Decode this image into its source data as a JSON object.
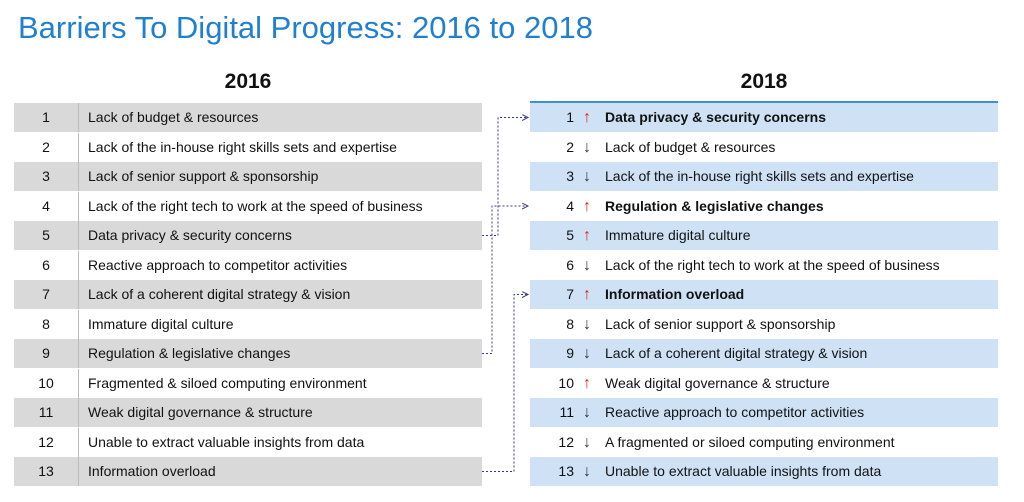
{
  "title": "Barriers To Digital Progress: 2016 to 2018",
  "colors": {
    "title": "#1f7fd0",
    "row_shade_2016": "#d9d9d9",
    "row_shade_2018": "#cfe2f5",
    "arrow_up": "#e02020",
    "arrow_down": "#333333",
    "connector": "#3a3a8c"
  },
  "table_2016": {
    "heading": "2016",
    "rows": [
      {
        "rank": "1",
        "text": "Lack of budget & resources"
      },
      {
        "rank": "2",
        "text": "Lack of the in-house right skills sets and expertise"
      },
      {
        "rank": "3",
        "text": "Lack of senior support & sponsorship"
      },
      {
        "rank": "4",
        "text": "Lack of the right tech to work at the speed of business"
      },
      {
        "rank": "5",
        "text": "Data privacy & security concerns"
      },
      {
        "rank": "6",
        "text": "Reactive approach to competitor activities"
      },
      {
        "rank": "7",
        "text": "Lack of a coherent digital strategy & vision"
      },
      {
        "rank": "8",
        "text": "Immature digital culture"
      },
      {
        "rank": "9",
        "text": "Regulation & legislative changes"
      },
      {
        "rank": "10",
        "text": "Fragmented & siloed computing environment"
      },
      {
        "rank": "11",
        "text": "Weak digital governance & structure"
      },
      {
        "rank": "12",
        "text": "Unable to extract valuable insights from data"
      },
      {
        "rank": "13",
        "text": "Information overload"
      }
    ]
  },
  "table_2018": {
    "heading": "2018",
    "rows": [
      {
        "rank": "1",
        "arrow": "↑",
        "direction": "up",
        "bold": true,
        "text": "Data privacy & security concerns"
      },
      {
        "rank": "2",
        "arrow": "↓",
        "direction": "down",
        "bold": false,
        "text": "Lack of budget & resources"
      },
      {
        "rank": "3",
        "arrow": "↓",
        "direction": "down",
        "bold": false,
        "text": "Lack of the in-house right skills sets and expertise"
      },
      {
        "rank": "4",
        "arrow": "↑",
        "direction": "up",
        "bold": true,
        "text": "Regulation & legislative changes"
      },
      {
        "rank": "5",
        "arrow": "↑",
        "direction": "up",
        "bold": false,
        "text": "Immature digital culture"
      },
      {
        "rank": "6",
        "arrow": "↓",
        "direction": "down",
        "bold": false,
        "text": "Lack of the right tech to work at the speed of business"
      },
      {
        "rank": "7",
        "arrow": "↑",
        "direction": "up",
        "bold": true,
        "text": "Information overload"
      },
      {
        "rank": "8",
        "arrow": "↓",
        "direction": "down",
        "bold": false,
        "text": "Lack of senior support & sponsorship"
      },
      {
        "rank": "9",
        "arrow": "↓",
        "direction": "down",
        "bold": false,
        "text": "Lack of a coherent digital strategy & vision"
      },
      {
        "rank": "10",
        "arrow": "↑",
        "direction": "up",
        "bold": false,
        "text": "Weak digital governance & structure"
      },
      {
        "rank": "11",
        "arrow": "↓",
        "direction": "down",
        "bold": false,
        "text": "Reactive approach to competitor activities"
      },
      {
        "rank": "12",
        "arrow": "↓",
        "direction": "down",
        "bold": false,
        "text": "A fragmented or siloed computing environment"
      },
      {
        "rank": "13",
        "arrow": "↓",
        "direction": "down",
        "bold": false,
        "text": "Unable to extract valuable insights from data"
      }
    ]
  },
  "connectors": [
    {
      "from_rank_2016": "5",
      "to_rank_2018": "1"
    },
    {
      "from_rank_2016": "9",
      "to_rank_2018": "4"
    },
    {
      "from_rank_2016": "13",
      "to_rank_2018": "7"
    }
  ]
}
